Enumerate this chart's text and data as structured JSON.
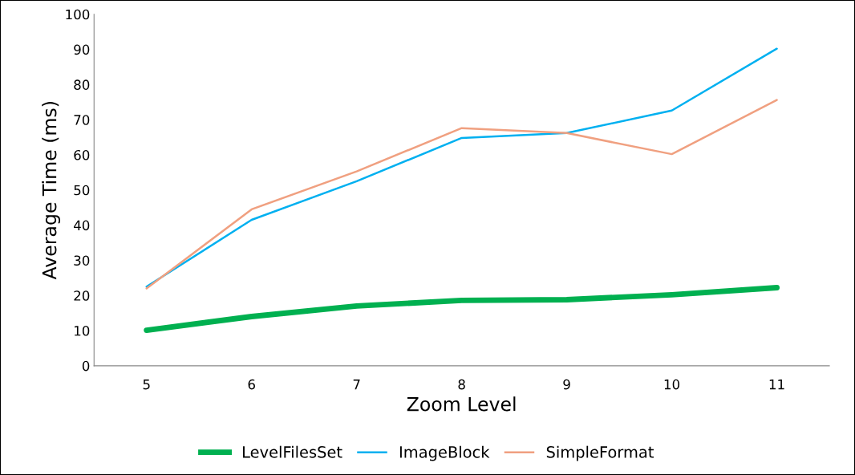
{
  "chart_data": {
    "type": "line",
    "xlabel": "Zoom Level",
    "ylabel": "Average Time (ms)",
    "categories": [
      "5",
      "6",
      "7",
      "8",
      "9",
      "10",
      "11"
    ],
    "series": [
      {
        "name": "LevelFilesSet",
        "color": "#00b050",
        "values": [
          10.1,
          14.0,
          17.0,
          18.6,
          18.8,
          20.2,
          22.2
        ]
      },
      {
        "name": "ImageBlock",
        "color": "#00b0f0",
        "values": [
          22.5,
          41.5,
          52.5,
          64.8,
          66.2,
          72.6,
          90.2
        ]
      },
      {
        "name": "SimpleFormat",
        "color": "#f0a080",
        "values": [
          22.0,
          44.5,
          55.3,
          67.6,
          66.2,
          60.2,
          75.6
        ]
      }
    ],
    "ylim": [
      0,
      100
    ],
    "yticks": [
      0,
      10,
      20,
      30,
      40,
      50,
      60,
      70,
      80,
      90,
      100
    ],
    "grid": false,
    "legend": "bottom",
    "marker": "none",
    "line_style": "solid"
  }
}
